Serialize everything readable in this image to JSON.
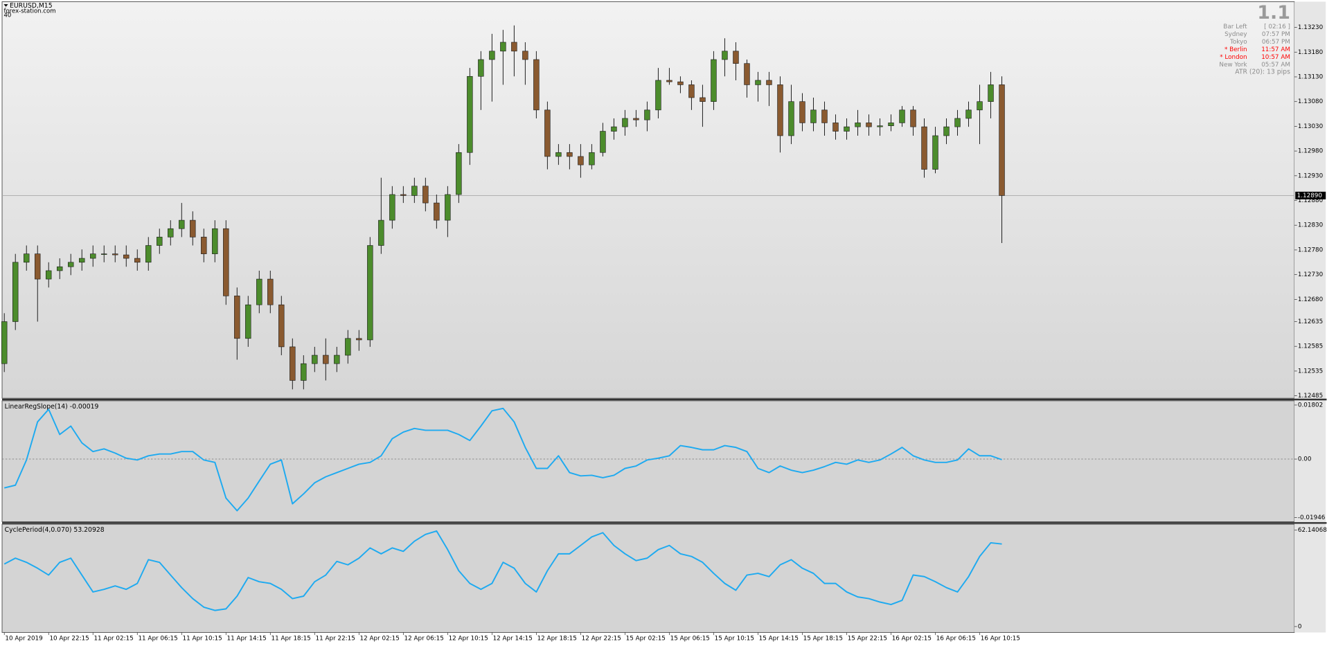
{
  "chart_data": [
    {
      "type": "candlestick",
      "title": "EURUSD,M15",
      "annotations": [
        "forex-station.com",
        "40"
      ],
      "up_color": "#4c8c2c",
      "down_color": "#8a5a30",
      "wick_color": "#1a1a1a",
      "open": [
        1.1255,
        1.12635,
        1.12755,
        1.12772,
        1.12721,
        1.12738,
        1.12746,
        1.12755,
        1.12763,
        1.12772,
        1.12772,
        1.1277,
        1.12763,
        1.12755,
        1.12789,
        1.12806,
        1.12823,
        1.1284,
        1.12806,
        1.12772,
        1.12823,
        1.12687,
        1.12601,
        1.12669,
        1.12721,
        1.12669,
        1.12584,
        1.12516,
        1.1255,
        1.12567,
        1.1255,
        1.12567,
        1.12601,
        1.12598,
        1.12789,
        1.1284,
        1.12892,
        1.1289,
        1.12909,
        1.12875,
        1.1284,
        1.12892,
        1.12977,
        1.13131,
        1.13165,
        1.13182,
        1.132,
        1.13182,
        1.13165,
        1.13063,
        1.12969,
        1.12977,
        1.12969,
        1.12952,
        1.12977,
        1.1302,
        1.13029,
        1.13046,
        1.13043,
        1.13063,
        1.13123,
        1.1312,
        1.13114,
        1.13088,
        1.1308,
        1.13165,
        1.13182,
        1.13157,
        1.13114,
        1.13123,
        1.13114,
        1.13011,
        1.1308,
        1.13037,
        1.13063,
        1.13037,
        1.1302,
        1.13029,
        1.13037,
        1.13029,
        1.13031,
        1.13037,
        1.13063,
        1.13029,
        1.12943,
        1.13011,
        1.13029,
        1.13046,
        1.13063,
        1.1308,
        1.13114
      ],
      "high": [
        1.12652,
        1.12772,
        1.12789,
        1.12789,
        1.12755,
        1.12763,
        1.12772,
        1.12781,
        1.12789,
        1.12789,
        1.12789,
        1.12789,
        1.12781,
        1.12806,
        1.12823,
        1.1284,
        1.12875,
        1.12858,
        1.12823,
        1.1284,
        1.1284,
        1.12704,
        1.12687,
        1.12738,
        1.12738,
        1.12687,
        1.12601,
        1.12567,
        1.12584,
        1.12601,
        1.12584,
        1.12618,
        1.12618,
        1.12806,
        1.12926,
        1.12909,
        1.12909,
        1.12926,
        1.12926,
        1.12892,
        1.12909,
        1.12994,
        1.13148,
        1.13182,
        1.13217,
        1.13225,
        1.13234,
        1.132,
        1.13182,
        1.1308,
        1.12994,
        1.12994,
        1.12994,
        1.12994,
        1.13037,
        1.13046,
        1.13063,
        1.13063,
        1.1308,
        1.13148,
        1.13148,
        1.13131,
        1.13123,
        1.13114,
        1.13182,
        1.13208,
        1.132,
        1.13165,
        1.1314,
        1.1314,
        1.13131,
        1.13114,
        1.13097,
        1.13088,
        1.1308,
        1.13054,
        1.13046,
        1.13063,
        1.13054,
        1.13046,
        1.13054,
        1.13071,
        1.13071,
        1.13046,
        1.13029,
        1.13046,
        1.13063,
        1.1308,
        1.13114,
        1.1314,
        1.13131
      ],
      "low": [
        1.12533,
        1.12618,
        1.12738,
        1.12635,
        1.12704,
        1.12721,
        1.12729,
        1.12738,
        1.12746,
        1.12755,
        1.12755,
        1.12746,
        1.12738,
        1.12738,
        1.12772,
        1.12789,
        1.12806,
        1.12789,
        1.12755,
        1.12755,
        1.12669,
        1.12558,
        1.12584,
        1.12652,
        1.12652,
        1.12567,
        1.12498,
        1.12498,
        1.12533,
        1.12516,
        1.12533,
        1.1255,
        1.12576,
        1.12584,
        1.12772,
        1.12823,
        1.12875,
        1.12875,
        1.12858,
        1.12823,
        1.12806,
        1.12875,
        1.12952,
        1.13063,
        1.1308,
        1.13114,
        1.13131,
        1.13114,
        1.13046,
        1.12943,
        1.12952,
        1.12943,
        1.12926,
        1.12943,
        1.12969,
        1.13003,
        1.13011,
        1.13029,
        1.1302,
        1.13046,
        1.13114,
        1.13097,
        1.13063,
        1.13029,
        1.13063,
        1.13131,
        1.13123,
        1.13088,
        1.1308,
        1.13071,
        1.12977,
        1.12994,
        1.1302,
        1.1302,
        1.13011,
        1.13003,
        1.13003,
        1.13011,
        1.13011,
        1.13011,
        1.1302,
        1.13029,
        1.13011,
        1.12926,
        1.12935,
        1.12994,
        1.13011,
        1.13029,
        1.12994,
        1.13046,
        1.12794
      ],
      "close": [
        1.12635,
        1.12755,
        1.12772,
        1.12721,
        1.12738,
        1.12746,
        1.12755,
        1.12763,
        1.12772,
        1.12772,
        1.1277,
        1.12763,
        1.12755,
        1.12789,
        1.12806,
        1.12823,
        1.1284,
        1.12806,
        1.12772,
        1.12823,
        1.12687,
        1.12601,
        1.12669,
        1.12721,
        1.12669,
        1.12584,
        1.12516,
        1.1255,
        1.12567,
        1.1255,
        1.12567,
        1.12601,
        1.12598,
        1.12789,
        1.1284,
        1.12892,
        1.1289,
        1.12909,
        1.12875,
        1.1284,
        1.12892,
        1.12977,
        1.13131,
        1.13165,
        1.13182,
        1.132,
        1.13182,
        1.13165,
        1.13063,
        1.12969,
        1.12977,
        1.12969,
        1.12952,
        1.12977,
        1.1302,
        1.13029,
        1.13046,
        1.13043,
        1.13063,
        1.13123,
        1.1312,
        1.13114,
        1.13088,
        1.1308,
        1.13165,
        1.13182,
        1.13157,
        1.13114,
        1.13123,
        1.13114,
        1.13011,
        1.1308,
        1.13037,
        1.13063,
        1.13037,
        1.1302,
        1.13029,
        1.13037,
        1.13029,
        1.13031,
        1.13037,
        1.13063,
        1.13029,
        1.12943,
        1.13011,
        1.13029,
        1.13046,
        1.13063,
        1.1308,
        1.13114,
        1.1289
      ],
      "last_price": {
        "value": 1.1289,
        "label": "1.12890"
      },
      "xlim": [
        -0.2,
        116.4
      ],
      "ylim": [
        1.1248,
        1.13282
      ],
      "yticks": [
        {
          "value": 1.1323,
          "label": "1.13230"
        },
        {
          "value": 1.1318,
          "label": "1.13180"
        },
        {
          "value": 1.1313,
          "label": "1.13130"
        },
        {
          "value": 1.1308,
          "label": "1.13080"
        },
        {
          "value": 1.1303,
          "label": "1.13030"
        },
        {
          "value": 1.1298,
          "label": "1.12980"
        },
        {
          "value": 1.1293,
          "label": "1.12930"
        },
        {
          "value": 1.1288,
          "label": "1.12880"
        },
        {
          "value": 1.1283,
          "label": "1.12830"
        },
        {
          "value": 1.1278,
          "label": "1.12780"
        },
        {
          "value": 1.1273,
          "label": "1.12730"
        },
        {
          "value": 1.1268,
          "label": "1.12680"
        },
        {
          "value": 1.12635,
          "label": "1.12635"
        },
        {
          "value": 1.12585,
          "label": "1.12585"
        },
        {
          "value": 1.12535,
          "label": "1.12535"
        },
        {
          "value": 1.12485,
          "label": "1.12485"
        }
      ]
    },
    {
      "type": "line",
      "title": "LinearRegSlope(14) -0.00019",
      "color": "#1eaaf0",
      "zero_line": true,
      "values": [
        -0.0096,
        -0.0087,
        -0.0003,
        0.0124,
        0.0166,
        0.0082,
        0.011,
        0.0054,
        0.0025,
        0.0034,
        0.002,
        0.0003,
        -0.0003,
        0.0011,
        0.0017,
        0.0017,
        0.0025,
        0.0025,
        -0.0003,
        -0.0011,
        -0.013,
        -0.0172,
        -0.013,
        -0.0073,
        -0.0017,
        -0.0003,
        -0.0149,
        -0.0116,
        -0.0079,
        -0.0059,
        -0.0045,
        -0.0031,
        -0.0017,
        -0.0011,
        0.0011,
        0.0068,
        0.009,
        0.0102,
        0.0096,
        0.0096,
        0.0096,
        0.0082,
        0.0062,
        0.011,
        0.0161,
        0.0169,
        0.0124,
        0.0039,
        -0.0031,
        -0.0031,
        0.0011,
        -0.0045,
        -0.0056,
        -0.0054,
        -0.0062,
        -0.0054,
        -0.0031,
        -0.0023,
        -0.0003,
        0.0003,
        0.0011,
        0.0045,
        0.0039,
        0.0031,
        0.0031,
        0.0045,
        0.0039,
        0.0025,
        -0.0031,
        -0.0045,
        -0.0023,
        -0.0037,
        -0.0045,
        -0.0037,
        -0.0025,
        -0.0011,
        -0.0017,
        -0.0003,
        -0.0011,
        -0.0003,
        0.0017,
        0.0039,
        0.0011,
        -0.0003,
        -0.0011,
        -0.0011,
        -0.0003,
        0.0034,
        0.0011,
        0.0011,
        -0.00019
      ],
      "xlim": [
        -0.2,
        116.4
      ],
      "ylim": [
        -0.02087,
        0.01943
      ],
      "yticks": [
        0.01802,
        {
          "value": 0,
          "label": "0.00"
        },
        -0.01946
      ]
    },
    {
      "type": "line",
      "title": "CyclePeriod(4,0.070) 53.20928",
      "color": "#1eaaf0",
      "values": [
        40.3,
        44.1,
        41.4,
        37.6,
        33.2,
        41.4,
        44.1,
        33.2,
        22.3,
        24.0,
        26.2,
        24.0,
        27.8,
        43.1,
        41.4,
        33.2,
        25.1,
        18.0,
        12.5,
        10.4,
        11.4,
        19.6,
        31.6,
        28.9,
        27.8,
        24.0,
        18.0,
        19.6,
        28.9,
        33.2,
        42.0,
        39.8,
        44.1,
        50.7,
        46.9,
        50.7,
        48.5,
        55.0,
        59.4,
        61.6,
        49.6,
        36.0,
        27.8,
        24.0,
        27.8,
        41.4,
        37.6,
        27.8,
        22.3,
        36.0,
        46.9,
        46.9,
        52.3,
        57.8,
        60.5,
        52.3,
        46.9,
        42.5,
        44.1,
        49.6,
        52.3,
        46.9,
        45.2,
        41.4,
        34.3,
        27.8,
        23.4,
        33.2,
        34.3,
        32.2,
        39.8,
        43.1,
        37.6,
        34.3,
        27.8,
        27.8,
        22.3,
        19.1,
        18.0,
        15.8,
        14.2,
        16.9,
        33.2,
        32.2,
        28.9,
        25.1,
        22.3,
        32.2,
        45.2,
        54.0,
        53.20928
      ],
      "xlim": [
        -0.2,
        116.4
      ],
      "ylim": [
        -3.82,
        65.96
      ],
      "yticks": [
        62.14068,
        0
      ],
      "xticks": [
        {
          "value": 0,
          "label": "10 Apr 2019"
        },
        {
          "value": 4,
          "label": "10 Apr 22:15"
        },
        {
          "value": 8,
          "label": "11 Apr 02:15"
        },
        {
          "value": 12,
          "label": "11 Apr 06:15"
        },
        {
          "value": 16,
          "label": "11 Apr 10:15"
        },
        {
          "value": 20,
          "label": "11 Apr 14:15"
        },
        {
          "value": 24,
          "label": "11 Apr 18:15"
        },
        {
          "value": 28,
          "label": "11 Apr 22:15"
        },
        {
          "value": 32,
          "label": "12 Apr 02:15"
        },
        {
          "value": 36,
          "label": "12 Apr 06:15"
        },
        {
          "value": 40,
          "label": "12 Apr 10:15"
        },
        {
          "value": 44,
          "label": "12 Apr 14:15"
        },
        {
          "value": 48,
          "label": "12 Apr 18:15"
        },
        {
          "value": 52,
          "label": "12 Apr 22:15"
        },
        {
          "value": 56,
          "label": "15 Apr 02:15"
        },
        {
          "value": 60,
          "label": "15 Apr 06:15"
        },
        {
          "value": 64,
          "label": "15 Apr 10:15"
        },
        {
          "value": 68,
          "label": "15 Apr 14:15"
        },
        {
          "value": 72,
          "label": "15 Apr 18:15"
        },
        {
          "value": 76,
          "label": "15 Apr 22:15"
        },
        {
          "value": 80,
          "label": "16 Apr 02:15"
        },
        {
          "value": 84,
          "label": "16 Apr 06:15"
        },
        {
          "value": 88,
          "label": "16 Apr 10:15"
        }
      ]
    }
  ],
  "info_panel": {
    "big_label": "1.1",
    "rows": [
      {
        "label": "Bar Left",
        "value": "[ 02:16 ]",
        "color": "#8c8c8c"
      },
      {
        "label": "Sydney",
        "value": "07:57 PM",
        "color": "#8c8c8c"
      },
      {
        "label": "Tokyo",
        "value": "06:57 PM",
        "color": "#8c8c8c"
      },
      {
        "label": "* Berlin",
        "value": "11:57 AM",
        "color": "#ff0000"
      },
      {
        "label": "* London",
        "value": "10:57 AM",
        "color": "#ff0000"
      },
      {
        "label": "New York",
        "value": "05:57 AM",
        "color": "#8c8c8c"
      }
    ],
    "footer": "ATR (20): 13 pips"
  }
}
